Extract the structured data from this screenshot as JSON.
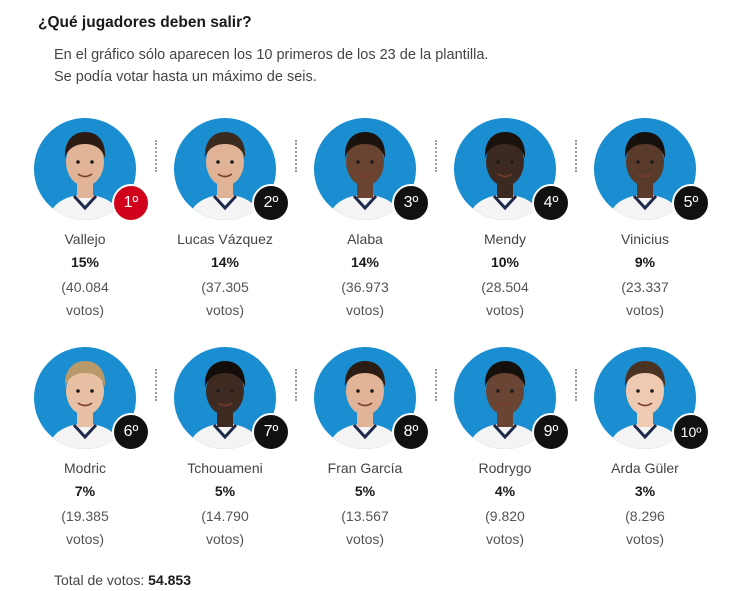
{
  "title": "¿Qué jugadores deben salir?",
  "subtitle": [
    "En el gráfico sólo aparecen los 10 primeros de los 23 de la plantilla.",
    "Se podía votar hasta un máximo de seis."
  ],
  "players": [
    {
      "rank": "1º",
      "name": "Vallejo",
      "pct": "15%",
      "votes_line1": "(40.084",
      "votes_line2": "votos)",
      "skin": "#e2b497",
      "hair": "#2b1b12",
      "highlight": true
    },
    {
      "rank": "2º",
      "name": "Lucas Vázquez",
      "pct": "14%",
      "votes_line1": "(37.305",
      "votes_line2": "votos)",
      "skin": "#e0b396",
      "hair": "#3a2a1f",
      "highlight": false
    },
    {
      "rank": "3º",
      "name": "Alaba",
      "pct": "14%",
      "votes_line1": "(36.973",
      "votes_line2": "votos)",
      "skin": "#6b4431",
      "hair": "#1a120d",
      "highlight": false
    },
    {
      "rank": "4º",
      "name": "Mendy",
      "pct": "10%",
      "votes_line1": "(28.504",
      "votes_line2": "votos)",
      "skin": "#3c2a22",
      "hair": "#1a120d",
      "highlight": false
    },
    {
      "rank": "5º",
      "name": "Vinicius",
      "pct": "9%",
      "votes_line1": "(23.337",
      "votes_line2": "votos)",
      "skin": "#5a3a2a",
      "hair": "#15100c",
      "highlight": false
    },
    {
      "rank": "6º",
      "name": "Modric",
      "pct": "7%",
      "votes_line1": "(19.385",
      "votes_line2": "votos)",
      "skin": "#e8c0a4",
      "hair": "#b89a6a",
      "highlight": false
    },
    {
      "rank": "7º",
      "name": "Tchouameni",
      "pct": "5%",
      "votes_line1": "(14.790",
      "votes_line2": "votos)",
      "skin": "#3e2a20",
      "hair": "#120d0a",
      "highlight": false
    },
    {
      "rank": "8º",
      "name": "Fran García",
      "pct": "5%",
      "votes_line1": "(13.567",
      "votes_line2": "votos)",
      "skin": "#e2b497",
      "hair": "#2b1d14",
      "highlight": false
    },
    {
      "rank": "9º",
      "name": "Rodrygo",
      "pct": "4%",
      "votes_line1": "(9.820",
      "votes_line2": "votos)",
      "skin": "#6a4534",
      "hair": "#15100c",
      "highlight": false
    },
    {
      "rank": "10º",
      "name": "Arda Güler",
      "pct": "3%",
      "votes_line1": "(8.296",
      "votes_line2": "votos)",
      "skin": "#efc9b0",
      "hair": "#4a3322",
      "highlight": false
    }
  ],
  "total": {
    "label": "Total de votos:",
    "value": "54.853"
  },
  "colors": {
    "avatar_bg": "#1a8ed0",
    "rank_bg": "#111111",
    "rank_first_bg": "#d0021b",
    "shirt": "#f4f4f4"
  }
}
